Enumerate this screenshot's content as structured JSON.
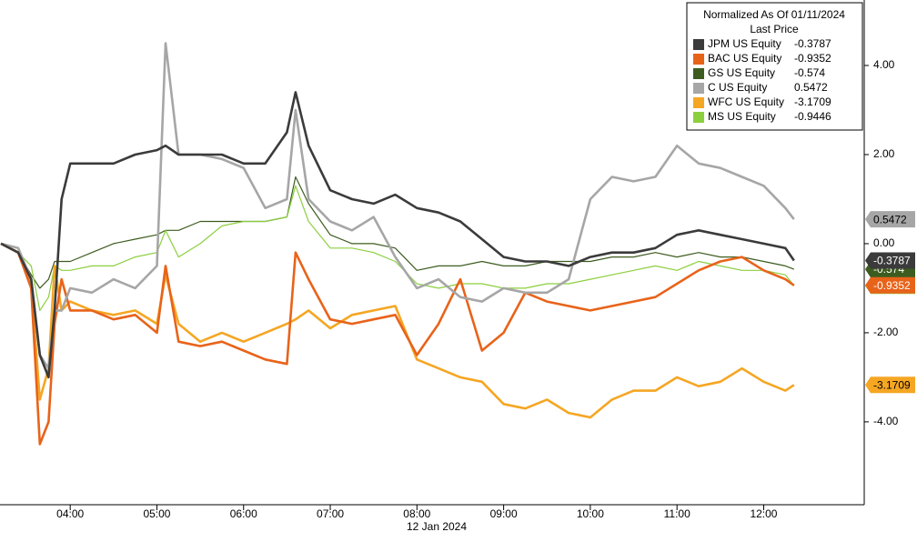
{
  "chart_data": {
    "type": "line",
    "legend_title": "Normalized As Of 01/11/2024",
    "legend_subtitle": "Last Price",
    "x_label": "12 Jan 2024",
    "legend": "upper right",
    "x": [
      3.2,
      3.4,
      3.55,
      3.65,
      3.75,
      3.82,
      3.9,
      4.0,
      4.25,
      4.5,
      4.75,
      5.0,
      5.1,
      5.25,
      5.5,
      5.75,
      6.0,
      6.25,
      6.5,
      6.6,
      6.75,
      7.0,
      7.25,
      7.5,
      7.75,
      8.0,
      8.25,
      8.5,
      8.75,
      9.0,
      9.25,
      9.5,
      9.75,
      10.0,
      10.25,
      10.5,
      10.75,
      11.0,
      11.25,
      11.5,
      11.75,
      12.0,
      12.25,
      12.35
    ],
    "xlim": [
      3.19,
      13.16
    ],
    "xticks": [
      {
        "value": 4,
        "label": "04:00"
      },
      {
        "value": 5,
        "label": "05:00"
      },
      {
        "value": 6,
        "label": "06:00"
      },
      {
        "value": 7,
        "label": "07:00"
      },
      {
        "value": 8,
        "label": "08:00"
      },
      {
        "value": 9,
        "label": "09:00"
      },
      {
        "value": 10,
        "label": "10:00"
      },
      {
        "value": 11,
        "label": "11:00"
      },
      {
        "value": 12,
        "label": "12:00"
      }
    ],
    "ylim": [
      -5.86,
      5.47
    ],
    "yticks": [
      {
        "value": -4,
        "label": "-4.00"
      },
      {
        "value": -2,
        "label": "-2.00"
      },
      {
        "value": 0,
        "label": "0.00"
      },
      {
        "value": 2,
        "label": "2.00"
      },
      {
        "value": 4,
        "label": "4.00"
      }
    ],
    "series": [
      {
        "name": "GS US Equity",
        "last": -0.574,
        "color": "#3d5c1f",
        "values": [
          0,
          -0.2,
          -0.7,
          -1.0,
          -0.8,
          -0.4,
          -0.4,
          -0.4,
          -0.2,
          0,
          0.1,
          0.2,
          0.3,
          0.3,
          0.5,
          0.5,
          0.5,
          0.5,
          0.6,
          1.5,
          0.9,
          0.2,
          0.0,
          0.0,
          -0.1,
          -0.6,
          -0.5,
          -0.5,
          -0.4,
          -0.5,
          -0.5,
          -0.4,
          -0.4,
          -0.4,
          -0.3,
          -0.3,
          -0.2,
          -0.3,
          -0.2,
          -0.3,
          -0.3,
          -0.4,
          -0.5,
          -0.574
        ]
      },
      {
        "name": "MS US Equity",
        "last": -0.9446,
        "color": "#8ccf3f",
        "values": [
          0,
          -0.2,
          -0.5,
          -1.5,
          -1.2,
          -0.5,
          -0.6,
          -0.6,
          -0.5,
          -0.5,
          -0.3,
          -0.2,
          0.3,
          -0.3,
          0.0,
          0.4,
          0.5,
          0.5,
          0.6,
          1.3,
          0.5,
          -0.1,
          -0.1,
          -0.2,
          -0.4,
          -0.9,
          -1.0,
          -0.9,
          -0.9,
          -1.0,
          -1.0,
          -0.9,
          -0.9,
          -0.8,
          -0.7,
          -0.6,
          -0.5,
          -0.6,
          -0.4,
          -0.5,
          -0.6,
          -0.6,
          -0.7,
          -0.9446
        ]
      },
      {
        "name": "WFC US Equity",
        "last": -3.1709,
        "color": "#f5a623",
        "values": [
          0,
          -0.2,
          -0.9,
          -3.5,
          -2.8,
          -0.5,
          -1.5,
          -1.3,
          -1.5,
          -1.6,
          -1.5,
          -1.8,
          -0.7,
          -1.8,
          -2.2,
          -2.0,
          -2.2,
          -2.0,
          -1.8,
          -1.7,
          -1.5,
          -1.9,
          -1.6,
          -1.5,
          -1.4,
          -2.6,
          -2.8,
          -3.0,
          -3.1,
          -3.6,
          -3.7,
          -3.5,
          -3.8,
          -3.9,
          -3.5,
          -3.3,
          -3.3,
          -3.0,
          -3.2,
          -3.1,
          -2.8,
          -3.1,
          -3.3,
          -3.1709
        ]
      },
      {
        "name": "BAC US Equity",
        "last": -0.9352,
        "color": "#e8631a",
        "values": [
          0,
          -0.2,
          -1.0,
          -4.5,
          -4.0,
          -1.8,
          -0.8,
          -1.5,
          -1.5,
          -1.7,
          -1.6,
          -2.0,
          -0.5,
          -2.2,
          -2.3,
          -2.2,
          -2.4,
          -2.6,
          -2.7,
          -0.2,
          -0.8,
          -1.7,
          -1.8,
          -1.7,
          -1.6,
          -2.5,
          -1.8,
          -0.8,
          -2.4,
          -2.0,
          -1.1,
          -1.3,
          -1.4,
          -1.5,
          -1.4,
          -1.3,
          -1.2,
          -0.9,
          -0.6,
          -0.4,
          -0.3,
          -0.6,
          -0.8,
          -0.9352
        ]
      },
      {
        "name": "C US Equity",
        "last": 0.5472,
        "color": "#a6a6a6",
        "values": [
          0,
          -0.1,
          -0.8,
          -2.5,
          -2.8,
          -1.5,
          -1.5,
          -1.0,
          -1.1,
          -0.8,
          -1.0,
          -0.5,
          4.5,
          2.0,
          2.0,
          1.9,
          1.7,
          0.8,
          1.0,
          3.0,
          1.0,
          0.5,
          0.3,
          0.6,
          -0.3,
          -1.0,
          -0.8,
          -1.2,
          -1.3,
          -1.0,
          -1.1,
          -1.1,
          -0.8,
          1.0,
          1.5,
          1.4,
          1.5,
          2.2,
          1.8,
          1.7,
          1.5,
          1.3,
          0.8,
          0.5472
        ]
      },
      {
        "name": "JPM US Equity",
        "last": -0.3787,
        "color": "#3b3b3b",
        "values": [
          0,
          -0.2,
          -0.8,
          -2.5,
          -3.0,
          -1.5,
          1.0,
          1.8,
          1.8,
          1.8,
          2.0,
          2.1,
          2.2,
          2.0,
          2.0,
          2.0,
          1.8,
          1.8,
          2.5,
          3.4,
          2.2,
          1.2,
          1.0,
          0.9,
          1.1,
          0.8,
          0.7,
          0.5,
          0.1,
          -0.3,
          -0.4,
          -0.4,
          -0.5,
          -0.3,
          -0.2,
          -0.2,
          -0.1,
          0.2,
          0.3,
          0.2,
          0.1,
          0.0,
          -0.1,
          -0.3787
        ]
      }
    ]
  }
}
